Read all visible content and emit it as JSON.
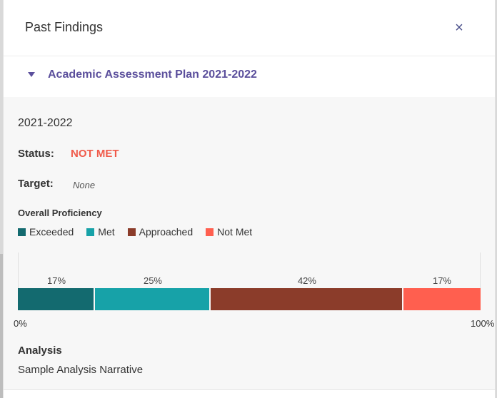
{
  "header": {
    "title": "Past Findings",
    "close_icon": "×"
  },
  "accordion": {
    "title": "Academic Assessment Plan 2021-2022",
    "expanded": true
  },
  "finding": {
    "year": "2021-2022",
    "status_label": "Status:",
    "status_value": "NOT MET",
    "target_label": "Target:",
    "target_value": "None",
    "proficiency_label": "Overall Proficiency",
    "legend": [
      {
        "label": "Exceeded",
        "color": "#136a6f"
      },
      {
        "label": "Met",
        "color": "#17a2a8"
      },
      {
        "label": "Approached",
        "color": "#8b3c2a"
      },
      {
        "label": "Not Met",
        "color": "#ff5f4f"
      }
    ],
    "segments": [
      {
        "label": "17%",
        "fraction": 0.1667,
        "color": "#136a6f"
      },
      {
        "label": "25%",
        "fraction": 0.25,
        "color": "#17a2a8"
      },
      {
        "label": "42%",
        "fraction": 0.4167,
        "color": "#8b3c2a"
      },
      {
        "label": "17%",
        "fraction": 0.1667,
        "color": "#ff5f4f"
      }
    ],
    "axis_min_label": "0%",
    "axis_max_label": "100%",
    "analysis_label": "Analysis",
    "analysis_text": "Sample Analysis Narrative"
  }
}
